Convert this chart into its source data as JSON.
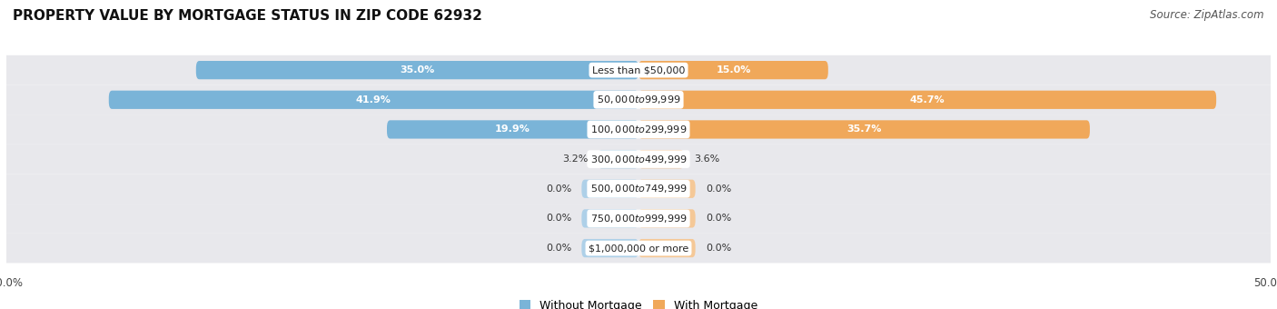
{
  "title": "PROPERTY VALUE BY MORTGAGE STATUS IN ZIP CODE 62932",
  "source": "Source: ZipAtlas.com",
  "categories": [
    "Less than $50,000",
    "$50,000 to $99,999",
    "$100,000 to $299,999",
    "$300,000 to $499,999",
    "$500,000 to $749,999",
    "$750,000 to $999,999",
    "$1,000,000 or more"
  ],
  "without_mortgage": [
    35.0,
    41.9,
    19.9,
    3.2,
    0.0,
    0.0,
    0.0
  ],
  "with_mortgage": [
    15.0,
    45.7,
    35.7,
    3.6,
    0.0,
    0.0,
    0.0
  ],
  "color_without": "#7ab4d8",
  "color_without_light": "#aed0e8",
  "color_with": "#f0a85a",
  "color_with_light": "#f5c897",
  "xlim": 50.0,
  "bg_color": "#ffffff",
  "row_bg_color": "#e8e8ec",
  "title_fontsize": 11,
  "source_fontsize": 8.5,
  "label_fontsize": 8,
  "cat_fontsize": 8,
  "legend_fontsize": 9,
  "axis_label_fontsize": 8.5,
  "stub_size": 4.5
}
